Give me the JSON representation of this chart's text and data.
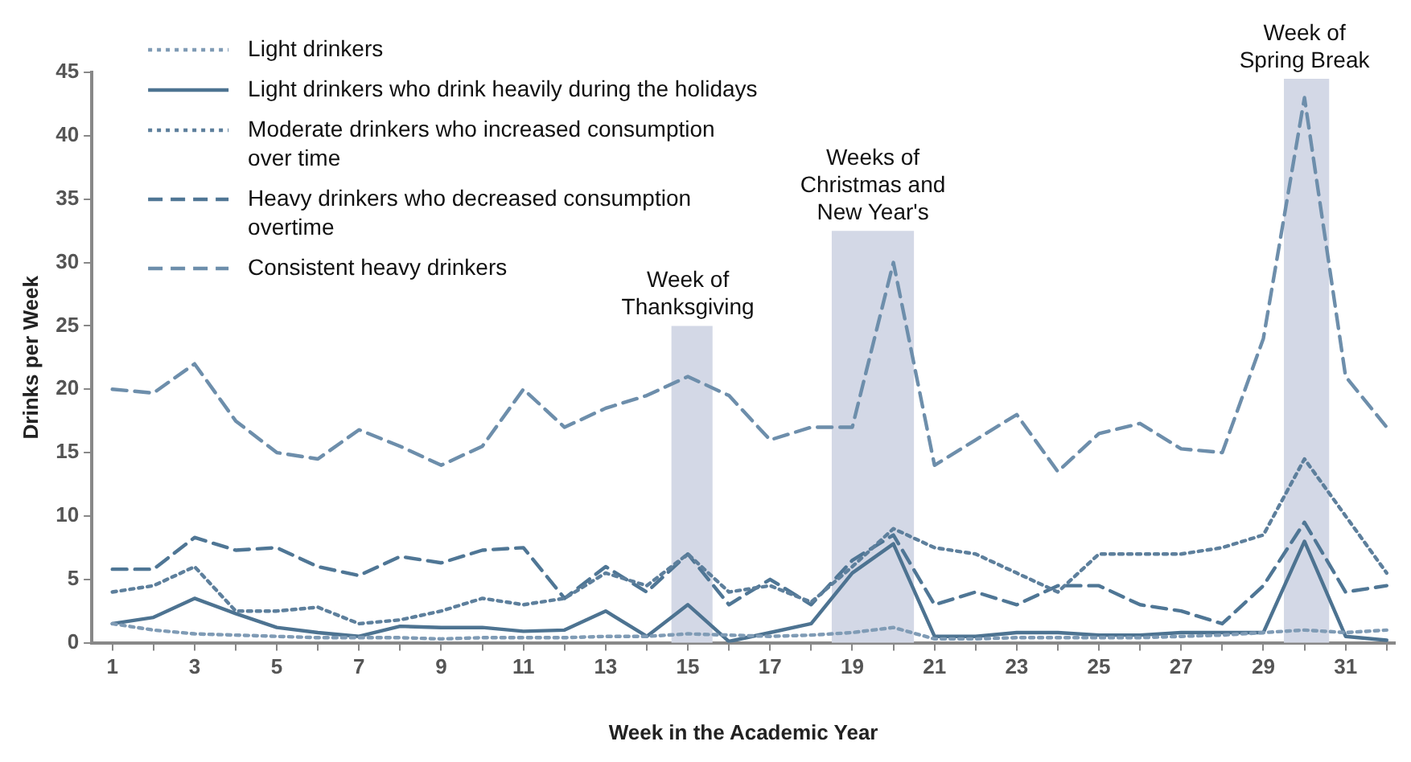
{
  "chart_data": {
    "type": "line",
    "xlabel": "Week in the Academic Year",
    "ylabel": "Drinks per Week",
    "x": [
      1,
      2,
      3,
      4,
      5,
      6,
      7,
      8,
      9,
      10,
      11,
      12,
      13,
      14,
      15,
      16,
      17,
      18,
      19,
      20,
      21,
      22,
      23,
      24,
      25,
      26,
      27,
      28,
      29,
      30,
      31,
      32
    ],
    "xlim": [
      0.5,
      32.2
    ],
    "xticks": [
      1,
      {
        "value": 2,
        "label": null
      },
      3,
      {
        "value": 4,
        "label": null
      },
      5,
      {
        "value": 6,
        "label": null
      },
      7,
      {
        "value": 8,
        "label": null
      },
      9,
      {
        "value": 10,
        "label": null
      },
      11,
      {
        "value": 12,
        "label": null
      },
      13,
      {
        "value": 14,
        "label": null
      },
      15,
      {
        "value": 16,
        "label": null
      },
      17,
      {
        "value": 18,
        "label": null
      },
      19,
      {
        "value": 20,
        "label": null
      },
      21,
      {
        "value": 22,
        "label": null
      },
      23,
      {
        "value": 24,
        "label": null
      },
      25,
      {
        "value": 26,
        "label": null
      },
      27,
      {
        "value": 28,
        "label": null
      },
      29,
      {
        "value": 30,
        "label": null
      },
      31,
      {
        "value": 32,
        "label": null
      }
    ],
    "ylim": [
      0,
      45
    ],
    "yticks": [
      0,
      5,
      10,
      15,
      20,
      25,
      30,
      35,
      40,
      45
    ],
    "grid": false,
    "legend": "top left",
    "marker": "none",
    "series": [
      {
        "name": "Light drinkers",
        "color": "#7f9bb5",
        "line_style": "dotted",
        "values": [
          1.5,
          1,
          0.7,
          0.6,
          0.5,
          0.4,
          0.4,
          0.4,
          0.3,
          0.4,
          0.4,
          0.4,
          0.5,
          0.5,
          0.7,
          0.6,
          0.5,
          0.6,
          0.8,
          1.2,
          0.3,
          0.3,
          0.4,
          0.4,
          0.4,
          0.4,
          0.5,
          0.6,
          0.8,
          1,
          0.8,
          1
        ]
      },
      {
        "name": "Light drinkers who drink heavily during the holidays",
        "color": "#4d7391",
        "line_style": "solid",
        "values": [
          1.5,
          2,
          3.5,
          2.3,
          1.2,
          0.8,
          0.5,
          1.3,
          1.2,
          1.2,
          0.9,
          1,
          2.5,
          0.5,
          3,
          0.1,
          0.8,
          1.5,
          5.5,
          7.8,
          0.5,
          0.5,
          0.8,
          0.8,
          0.6,
          0.6,
          0.8,
          0.8,
          0.8,
          8,
          0.5,
          0.2
        ]
      },
      {
        "name": "Moderate drinkers who increased consumption over time",
        "color": "#5d7f9c",
        "line_style": "dotted",
        "values": [
          4,
          4.5,
          6,
          2.5,
          2.5,
          2.8,
          1.5,
          1.8,
          2.5,
          3.5,
          3,
          3.5,
          5.5,
          4.5,
          7,
          4,
          4.5,
          3.2,
          6,
          9,
          7.5,
          7,
          5.5,
          4,
          7,
          7,
          7,
          7.5,
          8.5,
          14.5,
          10,
          5.5
        ]
      },
      {
        "name": "Heavy drinkers who decreased consumption overtime",
        "color": "#4f7695",
        "line_style": "dashed",
        "values": [
          5.8,
          5.8,
          8.3,
          7.3,
          7.5,
          6,
          5.3,
          6.8,
          6.3,
          7.3,
          7.5,
          3.5,
          6,
          4,
          7,
          3,
          5,
          3,
          6.5,
          8.5,
          3,
          4,
          3,
          4.5,
          4.5,
          3,
          2.5,
          1.5,
          4.5,
          9.5,
          4,
          4.5
        ]
      },
      {
        "name": "Consistent heavy drinkers",
        "color": "#6d8eab",
        "line_style": "dashed",
        "values": [
          20,
          19.7,
          22,
          17.5,
          15,
          14.5,
          16.8,
          15.5,
          14,
          15.5,
          20,
          17,
          18.5,
          19.5,
          21,
          19.5,
          16,
          17,
          17,
          30,
          14,
          16,
          18,
          13.5,
          16.5,
          17.3,
          15.3,
          15,
          24,
          43,
          21,
          17
        ]
      }
    ],
    "bands": [
      {
        "axis": "x",
        "from": 14.6,
        "to": 15.6,
        "color": "#d3d8e6"
      },
      {
        "axis": "x",
        "from": 18.5,
        "to": 20.5,
        "color": "#d3d8e6"
      },
      {
        "axis": "x",
        "from": 29.5,
        "to": 30.6,
        "color": "#d3d8e6"
      }
    ],
    "annotations": [
      {
        "text": "Week of\nThanksgiving",
        "x": 15,
        "y": 25.5
      },
      {
        "text": "Weeks of\nChristmas and\nNew Year's",
        "x": 19.5,
        "y": 33
      },
      {
        "text": "Week of\nSpring Break",
        "x": 30,
        "y": 45
      }
    ]
  }
}
